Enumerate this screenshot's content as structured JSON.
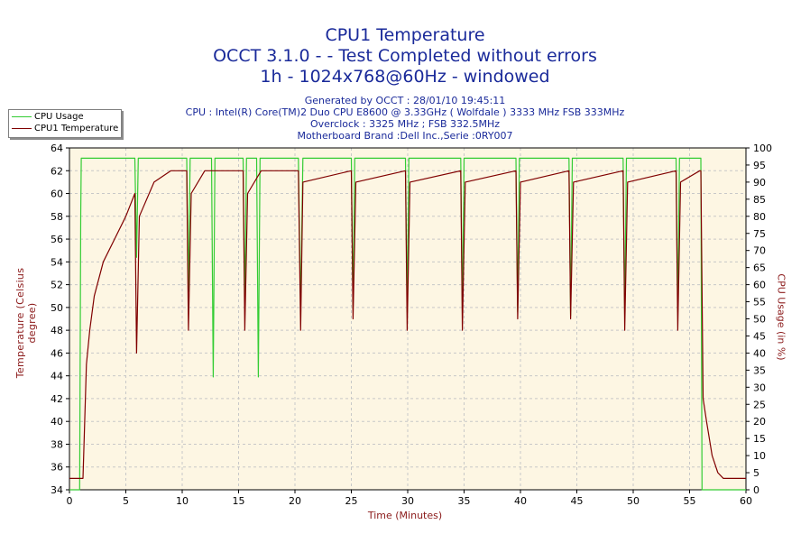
{
  "titles": {
    "line1": "CPU1 Temperature",
    "line2": "OCCT 3.1.0 -  - Test Completed without errors",
    "line3": "1h - 1024x768@60Hz - windowed"
  },
  "info": {
    "generated": "Generated by OCCT : 28/01/10 19:45:11",
    "cpu": "CPU : Intel(R) Core(TM)2 Duo CPU E8600 @ 3.33GHz ( Wolfdale ) 3333 MHz FSB 333MHz",
    "overclock": "Overclock : 3325 MHz ; FSB 332.5MHz",
    "motherboard": "Motherboard Brand :Dell Inc.,Serie :0RY007"
  },
  "legend": {
    "position": "top-left",
    "items": [
      {
        "label": "CPU Usage",
        "color": "#33cc33"
      },
      {
        "label": "CPU1 Temperature",
        "color": "#800000"
      }
    ]
  },
  "colors": {
    "plot_background": "#fdf6e3",
    "grid": "#c8c8c8",
    "axis_text": "#000000",
    "axis_label": "#8b1a1a",
    "title": "#1a2a9a"
  },
  "chart_data": {
    "type": "line",
    "title": "CPU1 Temperature",
    "xlabel": "Time (Minutes)",
    "ylabel": "Temperature (Celsius degree)",
    "y2label": "CPU Usage (in %)",
    "xlim": [
      0,
      60
    ],
    "ylim": [
      34,
      64
    ],
    "y2lim": [
      0,
      100
    ],
    "grid": true,
    "xticks": [
      0,
      5,
      10,
      15,
      20,
      25,
      30,
      35,
      40,
      45,
      50,
      55,
      60
    ],
    "yticks": [
      34,
      36,
      38,
      40,
      42,
      44,
      46,
      48,
      50,
      52,
      54,
      56,
      58,
      60,
      62,
      64
    ],
    "y2ticks": [
      0,
      5,
      10,
      15,
      20,
      25,
      30,
      35,
      40,
      45,
      50,
      55,
      60,
      65,
      70,
      75,
      80,
      85,
      90,
      95,
      100
    ],
    "series": [
      {
        "name": "CPU Usage",
        "axis": "right",
        "color": "#33cc33",
        "x": [
          0,
          0.9,
          1.0,
          1.05,
          1.3,
          5.8,
          5.95,
          6.1,
          10.4,
          10.55,
          10.7,
          12.6,
          12.75,
          12.9,
          15.4,
          15.55,
          15.7,
          16.6,
          16.75,
          16.9,
          20.3,
          20.5,
          20.7,
          25.0,
          25.15,
          25.3,
          29.8,
          29.95,
          30.1,
          34.7,
          34.85,
          35.0,
          39.6,
          39.75,
          39.9,
          44.3,
          44.45,
          44.6,
          49.1,
          49.25,
          49.4,
          53.8,
          53.95,
          54.1,
          56.0,
          56.1,
          57.0,
          60.0
        ],
        "y": [
          0,
          0,
          80,
          97,
          97,
          97,
          68,
          97,
          97,
          58,
          97,
          97,
          33,
          97,
          97,
          55,
          97,
          97,
          33,
          97,
          97,
          53,
          97,
          97,
          53,
          97,
          97,
          52,
          97,
          97,
          51,
          97,
          97,
          52,
          97,
          97,
          51,
          97,
          97,
          51,
          97,
          97,
          52,
          97,
          97,
          0,
          0,
          0
        ]
      },
      {
        "name": "CPU1 Temperature",
        "axis": "left",
        "color": "#800000",
        "x": [
          0,
          1.2,
          1.5,
          1.8,
          2.2,
          3.0,
          4.0,
          5.0,
          5.8,
          5.95,
          6.2,
          7.5,
          9.0,
          10.4,
          10.55,
          10.8,
          12.0,
          15.4,
          15.55,
          15.8,
          17.0,
          20.3,
          20.5,
          20.7,
          25.0,
          25.15,
          25.4,
          29.8,
          29.95,
          30.2,
          34.7,
          34.85,
          35.1,
          39.6,
          39.75,
          40.0,
          44.3,
          44.45,
          44.7,
          49.1,
          49.25,
          49.5,
          53.8,
          53.95,
          54.2,
          55.9,
          56.0,
          56.2,
          56.5,
          57.0,
          57.5,
          58.0,
          60.0
        ],
        "y": [
          35,
          35,
          45,
          48,
          51,
          54,
          56,
          58,
          60,
          46,
          58,
          61,
          62,
          62,
          48,
          60,
          62,
          62,
          48,
          60,
          62,
          62,
          48,
          61,
          62,
          49,
          61,
          62,
          48,
          61,
          62,
          48,
          61,
          62,
          49,
          61,
          62,
          49,
          61,
          62,
          48,
          61,
          62,
          48,
          61,
          62,
          62,
          42,
          40,
          37,
          35.5,
          35,
          35
        ]
      }
    ]
  }
}
